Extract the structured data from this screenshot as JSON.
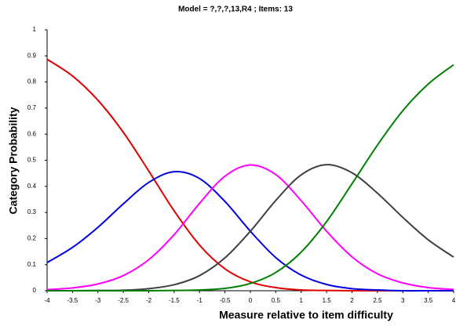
{
  "chart_data": {
    "type": "line",
    "title": "Model = ?,?,?,13,R4  ; Items: 13",
    "x_label": "Measure relative to item difficulty",
    "y_label": "Category Probability",
    "x": [
      -4,
      -3.5,
      -3,
      -2.5,
      -2,
      -1.5,
      -1,
      -0.5,
      0,
      0.5,
      1,
      1.5,
      2,
      2.5,
      3,
      3.5,
      4
    ],
    "series": [
      {
        "color": "#e00000",
        "values": [
          0.887,
          0.823,
          0.73,
          0.607,
          0.459,
          0.306,
          0.175,
          0.084,
          0.034,
          0.012,
          0.003,
          0.001,
          0,
          0,
          0,
          0,
          0
        ]
      },
      {
        "color": "#0000e0",
        "values": [
          0.108,
          0.166,
          0.243,
          0.333,
          0.415,
          0.456,
          0.43,
          0.342,
          0.228,
          0.127,
          0.06,
          0.024,
          0.008,
          0.003,
          0,
          0,
          0
        ]
      },
      {
        "color": "#ff00ff",
        "values": [
          0.004,
          0.011,
          0.026,
          0.058,
          0.119,
          0.215,
          0.335,
          0.439,
          0.482,
          0.445,
          0.345,
          0.228,
          0.13,
          0.065,
          0.03,
          0.012,
          0.005
        ]
      },
      {
        "color": "#404040",
        "values": [
          0,
          0,
          0.001,
          0.002,
          0.008,
          0.023,
          0.058,
          0.126,
          0.228,
          0.346,
          0.444,
          0.483,
          0.452,
          0.374,
          0.281,
          0.195,
          0.129
        ]
      },
      {
        "color": "#008000",
        "values": [
          0,
          0,
          0,
          0,
          0,
          0.001,
          0.003,
          0.009,
          0.028,
          0.07,
          0.148,
          0.265,
          0.41,
          0.558,
          0.69,
          0.792,
          0.866
        ]
      }
    ],
    "xlim": [
      -4,
      4
    ],
    "xticks": [
      -4,
      -3.5,
      -3,
      -2.5,
      -2,
      -1.5,
      -1,
      -0.5,
      0,
      0.5,
      1,
      1.5,
      2,
      2.5,
      3,
      3.5,
      4
    ],
    "ylim": [
      0,
      1
    ],
    "yticks": [
      0,
      0.1,
      0.2,
      0.3,
      0.4,
      0.5,
      0.6,
      0.7,
      0.8,
      0.9,
      1
    ]
  }
}
